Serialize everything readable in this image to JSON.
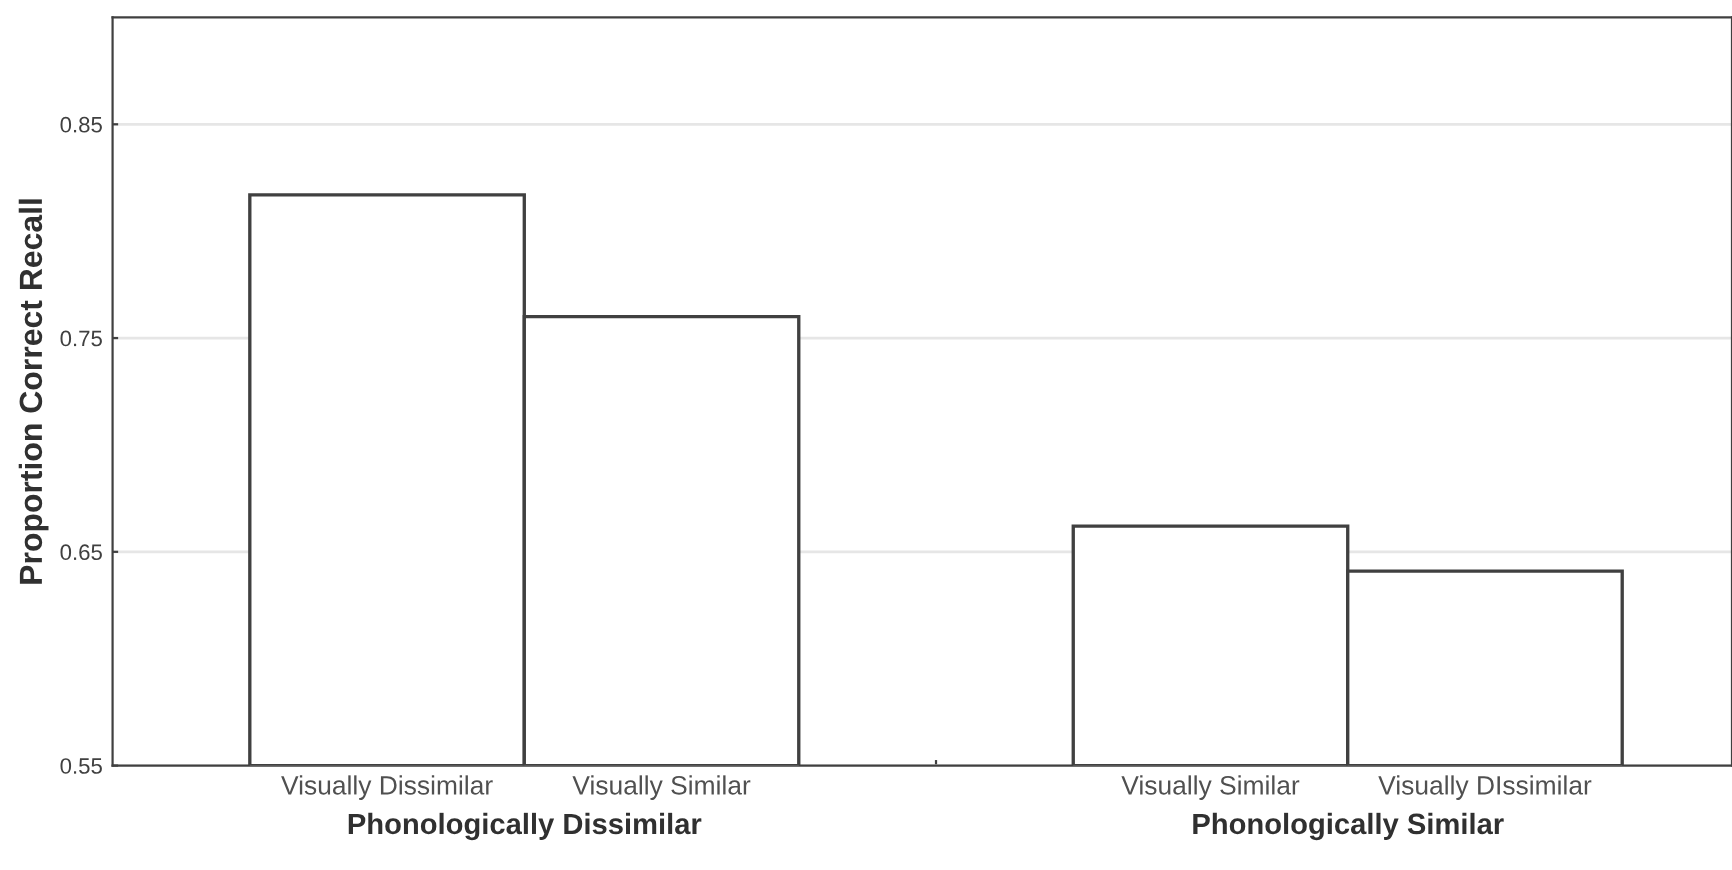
{
  "chart_data": {
    "type": "bar",
    "ylabel": "Proportion Correct Recall",
    "categories": [
      "Visually Dissimilar",
      "Visually Similar",
      null,
      "Visually Similar",
      "Visually DIssimilar"
    ],
    "values": [
      0.817,
      0.76,
      null,
      0.662,
      0.641
    ],
    "color": "#ffffff",
    "ylim": [
      0.55,
      0.9
    ],
    "yticks": [
      0.55,
      0.65,
      0.75,
      0.85
    ],
    "grid": "y",
    "annotations": [
      "Phonologically Dissimilar",
      "Phonologically Similar"
    ]
  }
}
